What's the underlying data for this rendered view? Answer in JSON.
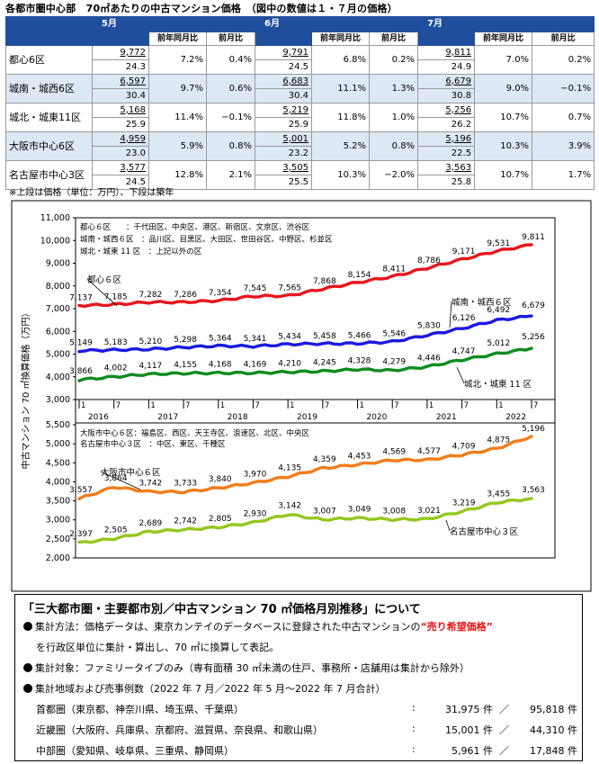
{
  "title": "各都市圏中心部　70㎡あたりの中古マンション価格　（図中の数値は１・７月の価格）",
  "table": {
    "months": [
      "5月",
      "6月",
      "7月"
    ],
    "yoy_label": "前年同月比",
    "mom_label": "前月比",
    "rows": [
      {
        "area": "都心6区",
        "shade": false,
        "cells": [
          {
            "price": "9,772",
            "age": "24.3",
            "yoy": "7.2%",
            "mom": "0.4%"
          },
          {
            "price": "9,791",
            "age": "24.5",
            "yoy": "6.8%",
            "mom": "0.2%"
          },
          {
            "price": "9,811",
            "age": "24.9",
            "yoy": "7.0%",
            "mom": "0.2%"
          }
        ]
      },
      {
        "area": "城南・城西6区",
        "shade": true,
        "cells": [
          {
            "price": "6,597",
            "age": "30.4",
            "yoy": "9.7%",
            "mom": "0.6%"
          },
          {
            "price": "6,683",
            "age": "30.4",
            "yoy": "11.1%",
            "mom": "1.3%"
          },
          {
            "price": "6,679",
            "age": "30.8",
            "yoy": "9.0%",
            "mom": "−0.1%"
          }
        ]
      },
      {
        "area": "城北・城東11区",
        "shade": false,
        "cells": [
          {
            "price": "5,168",
            "age": "25.9",
            "yoy": "11.4%",
            "mom": "−0.1%"
          },
          {
            "price": "5,219",
            "age": "25.9",
            "yoy": "11.8%",
            "mom": "1.0%"
          },
          {
            "price": "5,256",
            "age": "26.2",
            "yoy": "10.7%",
            "mom": "0.7%"
          }
        ]
      },
      {
        "area": "大阪市中心6区",
        "shade": true,
        "cells": [
          {
            "price": "4,959",
            "age": "23.0",
            "yoy": "5.9%",
            "mom": "0.8%"
          },
          {
            "price": "5,001",
            "age": "23.2",
            "yoy": "5.2%",
            "mom": "0.8%"
          },
          {
            "price": "5,196",
            "age": "22.5",
            "yoy": "10.3%",
            "mom": "3.9%"
          }
        ]
      },
      {
        "area": "名古屋市中心3区",
        "shade": false,
        "cells": [
          {
            "price": "3,577",
            "age": "24.5",
            "yoy": "12.8%",
            "mom": "2.1%"
          },
          {
            "price": "3,505",
            "age": "25.5",
            "yoy": "10.3%",
            "mom": "−2.0%"
          },
          {
            "price": "3,563",
            "age": "25.8",
            "yoy": "10.7%",
            "mom": "1.7%"
          }
        ]
      }
    ]
  },
  "note": "※上段は価格（単位：万円）、下段は築年",
  "chart_data": [
    {
      "type": "line",
      "ylabel": "中古マンション 70 ㎡換算価格（万円）",
      "ylim": [
        3000,
        11000
      ],
      "yticks": [
        3000,
        4000,
        5000,
        6000,
        7000,
        8000,
        9000,
        10000,
        11000
      ],
      "x_tick_labels": [
        "1",
        "7",
        "1",
        "7",
        "1",
        "7",
        "1",
        "7",
        "1",
        "7",
        "1",
        "7",
        "1",
        "7"
      ],
      "year_labels": [
        "2016",
        "2017",
        "2018",
        "2019",
        "2020",
        "2021",
        "2022"
      ],
      "legend_notes": [
        "都心６区　　：千代田区、中央区、港区、新宿区、文京区、渋谷区",
        "城南・城西６区　：品川区、目黒区、大田区、世田谷区、中野区、杉並区",
        "城北・城東 11 区　：上記以外の区"
      ],
      "series": [
        {
          "name": "都心６区",
          "color": "#e8151c",
          "labels": [
            "7,137",
            "7,185",
            "7,282",
            "7,286",
            "7,354",
            "7,545",
            "7,565",
            "7,868",
            "8,154",
            "8,411",
            "8,786",
            "9,171",
            "9,531",
            "9,811"
          ],
          "values": [
            7137,
            7185,
            7282,
            7286,
            7354,
            7545,
            7565,
            7868,
            8154,
            8411,
            8786,
            9171,
            9531,
            9811
          ]
        },
        {
          "name": "城南・城西６区",
          "color": "#1a1ae0",
          "labels": [
            "5,149",
            "5,183",
            "5,210",
            "5,298",
            "5,364",
            "5,341",
            "5,434",
            "5,458",
            "5,466",
            "5,546",
            "5,830",
            "6,126",
            "6,492",
            "6,679"
          ],
          "values": [
            5149,
            5183,
            5210,
            5298,
            5364,
            5341,
            5434,
            5458,
            5466,
            5546,
            5830,
            6126,
            6492,
            6679
          ]
        },
        {
          "name": "城北・城東 11 区",
          "color": "#0e8c1e",
          "labels": [
            "3,866",
            "4,002",
            "4,117",
            "4,155",
            "4,168",
            "4,169",
            "4,210",
            "4,245",
            "4,328",
            "4,279",
            "4,446",
            "4,747",
            "5,012",
            "5,256"
          ],
          "values": [
            3866,
            4002,
            4117,
            4155,
            4168,
            4169,
            4210,
            4245,
            4328,
            4279,
            4446,
            4747,
            5012,
            5256
          ]
        }
      ]
    },
    {
      "type": "line",
      "ylabel": "中古マンション 70 ㎡換算価格（万円）",
      "ylim": [
        2000,
        5500
      ],
      "yticks": [
        2000,
        2500,
        3000,
        3500,
        4000,
        4500,
        5000,
        5500
      ],
      "legend_notes": [
        "大阪市中心６区：福島区、西区、天王寺区、浪速区、北区、中央区",
        "名古屋市中心３区　：中区、東区、千種区"
      ],
      "series": [
        {
          "name": "大阪市中心６区",
          "color": "#f07d1a",
          "labels": [
            "3,557",
            "3,864",
            "3,742",
            "3,733",
            "3,840",
            "3,970",
            "4,135",
            "4,359",
            "4,453",
            "4,569",
            "4,577",
            "4,709",
            "4,875",
            "5,196"
          ],
          "values": [
            3557,
            3864,
            3742,
            3733,
            3840,
            3970,
            4135,
            4359,
            4453,
            4569,
            4577,
            4709,
            4875,
            5196
          ]
        },
        {
          "name": "名古屋市中心３区",
          "color": "#92c81e",
          "labels": [
            "2,397",
            "2,505",
            "2,689",
            "2,742",
            "2,805",
            "2,930",
            "3,142",
            "3,007",
            "3,049",
            "3,008",
            "3,021",
            "3,219",
            "3,455",
            "3,563"
          ],
          "values": [
            2397,
            2505,
            2689,
            2742,
            2805,
            2930,
            3142,
            3007,
            3049,
            3008,
            3021,
            3219,
            3455,
            3563
          ]
        }
      ]
    }
  ],
  "info": {
    "title": "「三大都市圏・主要都市別／中古マンション 70 ㎡価格月別推移」について",
    "method_a": "集計方法：価格データは、東京カンテイのデータベースに登録された中古マンションの",
    "method_red": "“売り希望価格”",
    "method_b": "を行政区単位に集計・算出し、70 ㎡に換算して表記。",
    "target": "集計対象：ファミリータイプのみ（専有面積 30 ㎡未満の住戸、事務所・店舗用は集計から除外）",
    "region": "集計地域および売事例数（2022 年 7 月／2022 年 5 月～2022 年 7 月合計）",
    "areas": [
      {
        "name": "首都圏（東京都、神奈川県、埼玉県、千葉県）",
        "colon": ":",
        "a": "31,975 件",
        "sep": "／",
        "b": "95,818 件"
      },
      {
        "name": "近畿圏（大阪府、兵庫県、京都府、滋賀県、奈良県、和歌山県）",
        "colon": ":",
        "a": "15,001 件",
        "sep": "／",
        "b": "44,310 件"
      },
      {
        "name": "中部圏（愛知県、岐阜県、三重県、静岡県）",
        "colon": ":",
        "a": "5,961 件",
        "sep": "／",
        "b": "17,848 件"
      }
    ]
  }
}
